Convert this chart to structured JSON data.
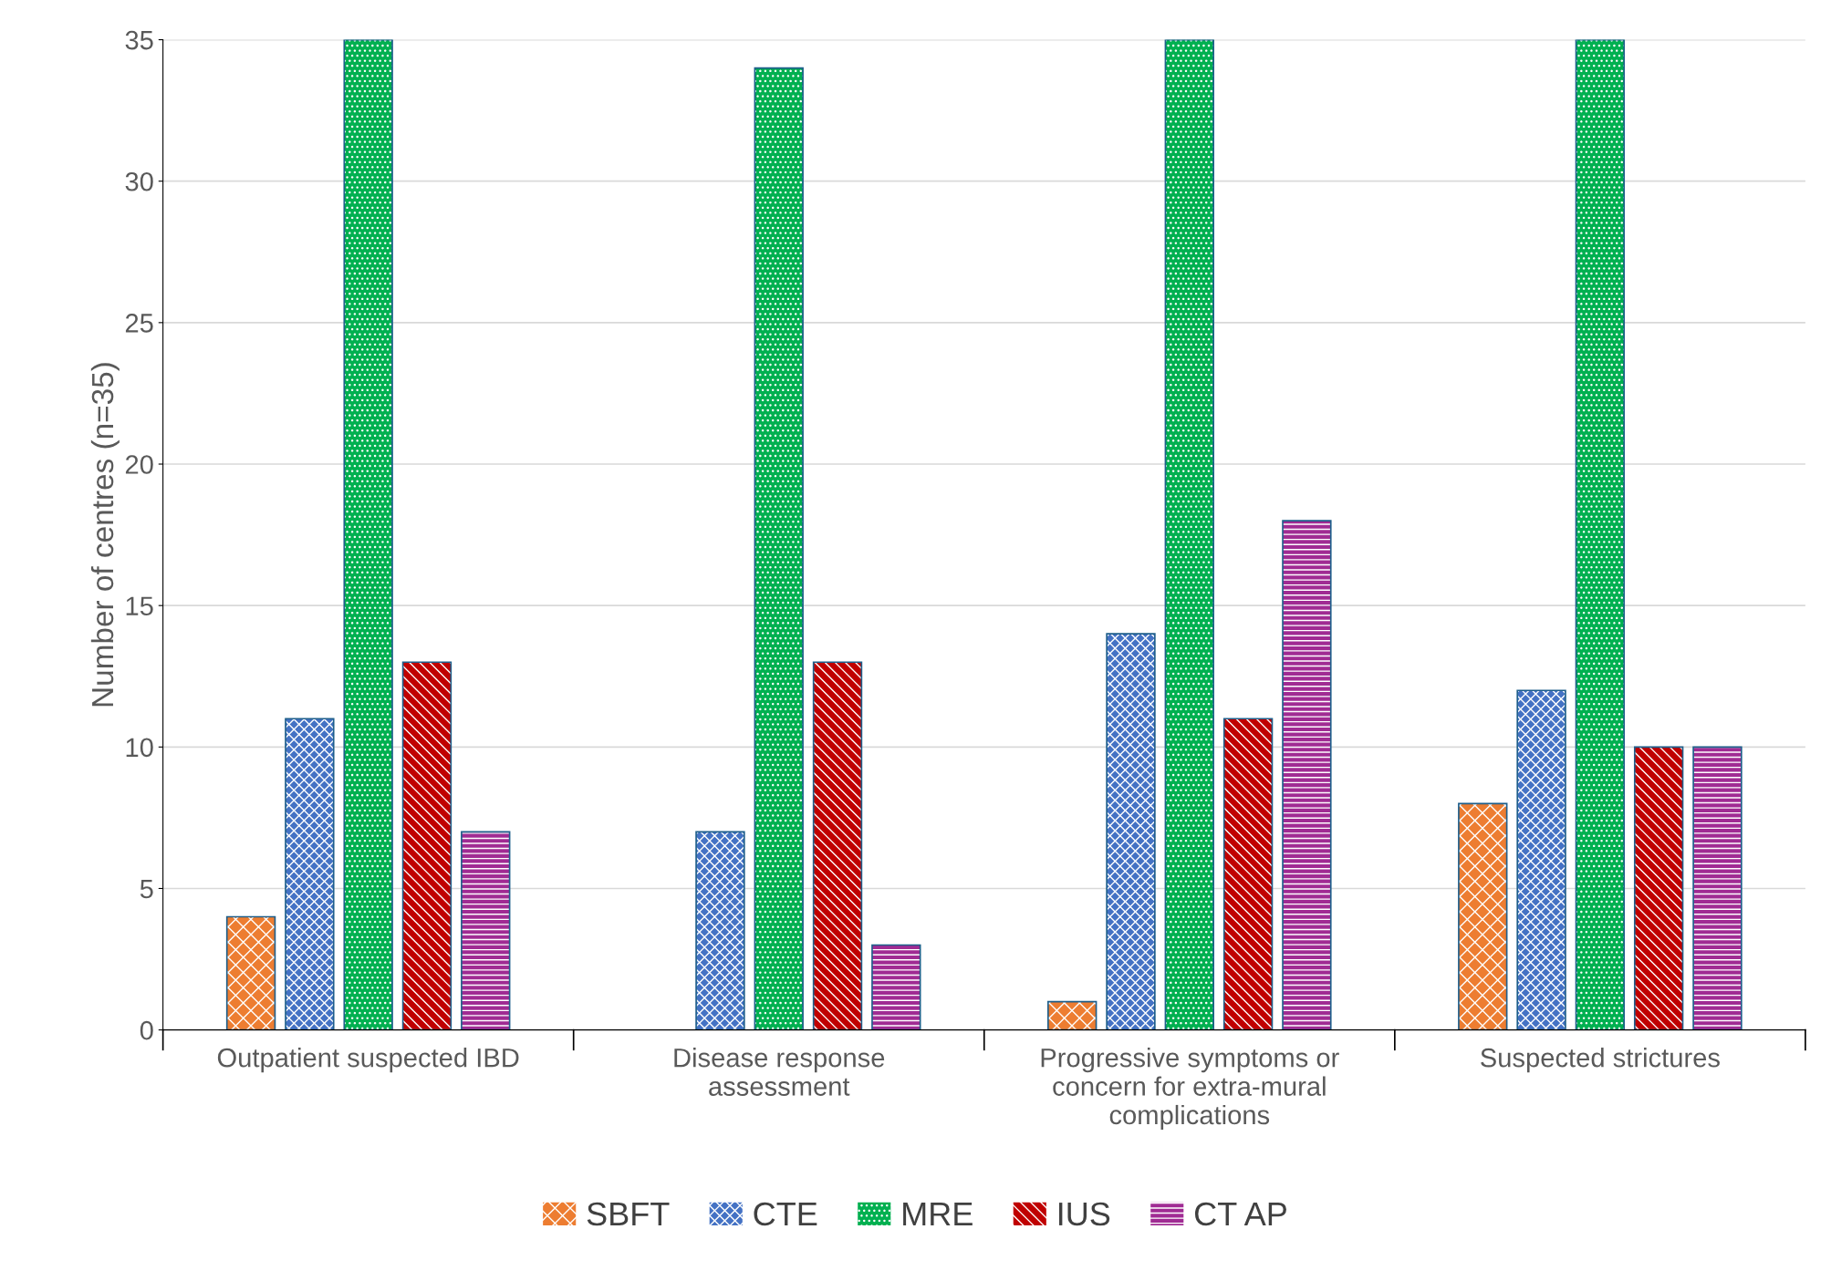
{
  "chart_data": {
    "type": "bar",
    "ylabel": "Number of centres (n=35)",
    "categories": [
      "Outpatient suspected IBD",
      "Disease response\nassessment",
      "Progressive symptoms or\nconcern for extra-mural\ncomplications",
      "Suspected strictures"
    ],
    "series": [
      {
        "name": "SBFT",
        "color": "#ed7d31",
        "values": [
          4,
          0,
          1,
          8
        ]
      },
      {
        "name": "CTE",
        "color": "#4472c4",
        "values": [
          11,
          7,
          14,
          12
        ]
      },
      {
        "name": "MRE",
        "color": "#00b050",
        "values": [
          35,
          34,
          35,
          35
        ]
      },
      {
        "name": "IUS",
        "color": "#c00000",
        "values": [
          13,
          13,
          11,
          10
        ]
      },
      {
        "name": "CT AP",
        "color": "#a02b93",
        "values": [
          7,
          3,
          18,
          10
        ]
      }
    ],
    "ylim": [
      0,
      35
    ],
    "yticks": [
      0,
      5,
      10,
      15,
      20,
      25,
      30,
      35
    ],
    "grid": "y",
    "legend": "bottom"
  }
}
